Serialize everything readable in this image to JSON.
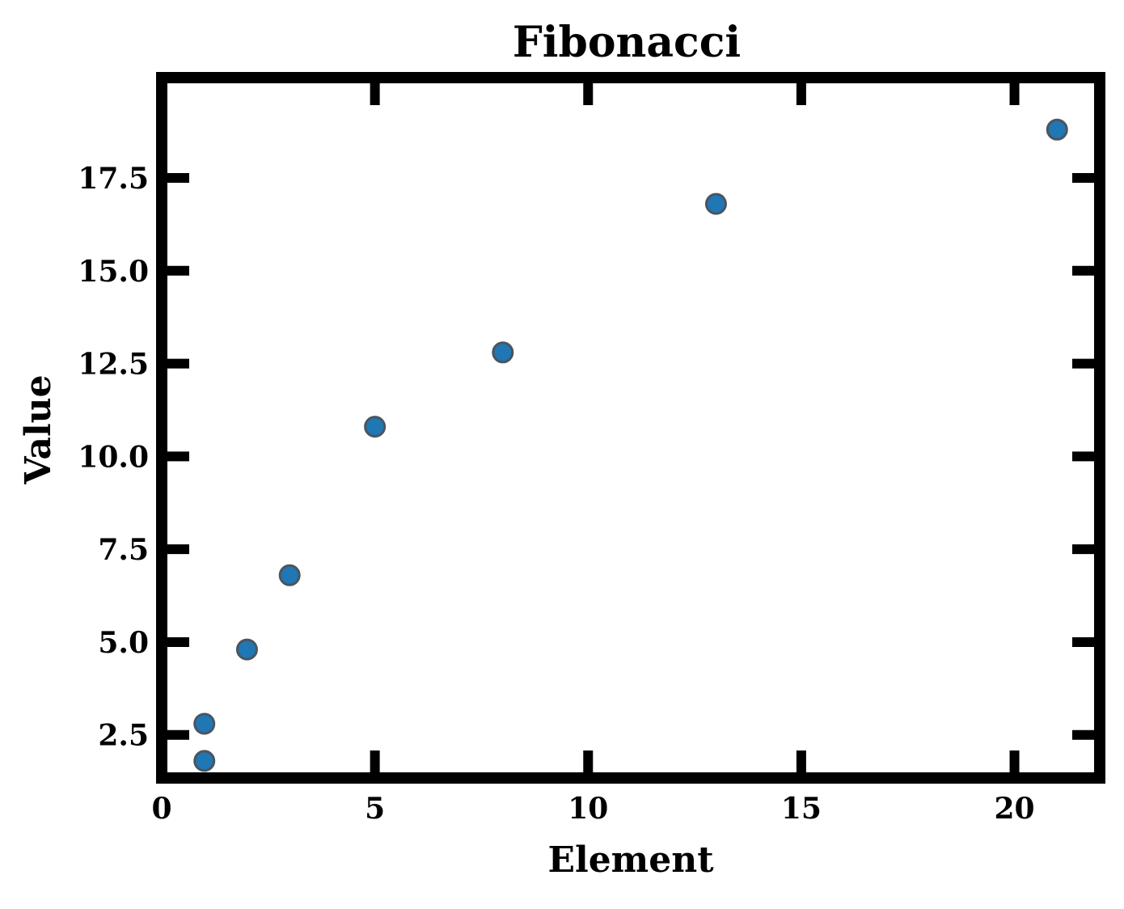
{
  "chart_data": {
    "type": "scatter",
    "title": "Fibonacci",
    "xlabel": "Element",
    "ylabel": "Value",
    "xlim": [
      0,
      22
    ],
    "ylim": [
      1.34,
      20.2
    ],
    "xticks": [
      0,
      5,
      10,
      15,
      20
    ],
    "xtick_labels": [
      "0",
      "5",
      "10",
      "15",
      "20"
    ],
    "yticks": [
      2.5,
      5.0,
      7.5,
      10.0,
      12.5,
      15.0,
      17.5
    ],
    "ytick_labels": [
      "2.5",
      "5.0",
      "7.5",
      "10.0",
      "12.5",
      "15.0",
      "17.5"
    ],
    "grid": false,
    "marker_color": "#1f77b4",
    "series": [
      {
        "points": [
          {
            "x": 1,
            "y": 1.8
          },
          {
            "x": 1,
            "y": 2.8
          },
          {
            "x": 2,
            "y": 4.8
          },
          {
            "x": 3,
            "y": 6.8
          },
          {
            "x": 5,
            "y": 10.8
          },
          {
            "x": 8,
            "y": 12.8
          },
          {
            "x": 13,
            "y": 16.8
          },
          {
            "x": 21,
            "y": 18.8
          }
        ]
      }
    ]
  }
}
